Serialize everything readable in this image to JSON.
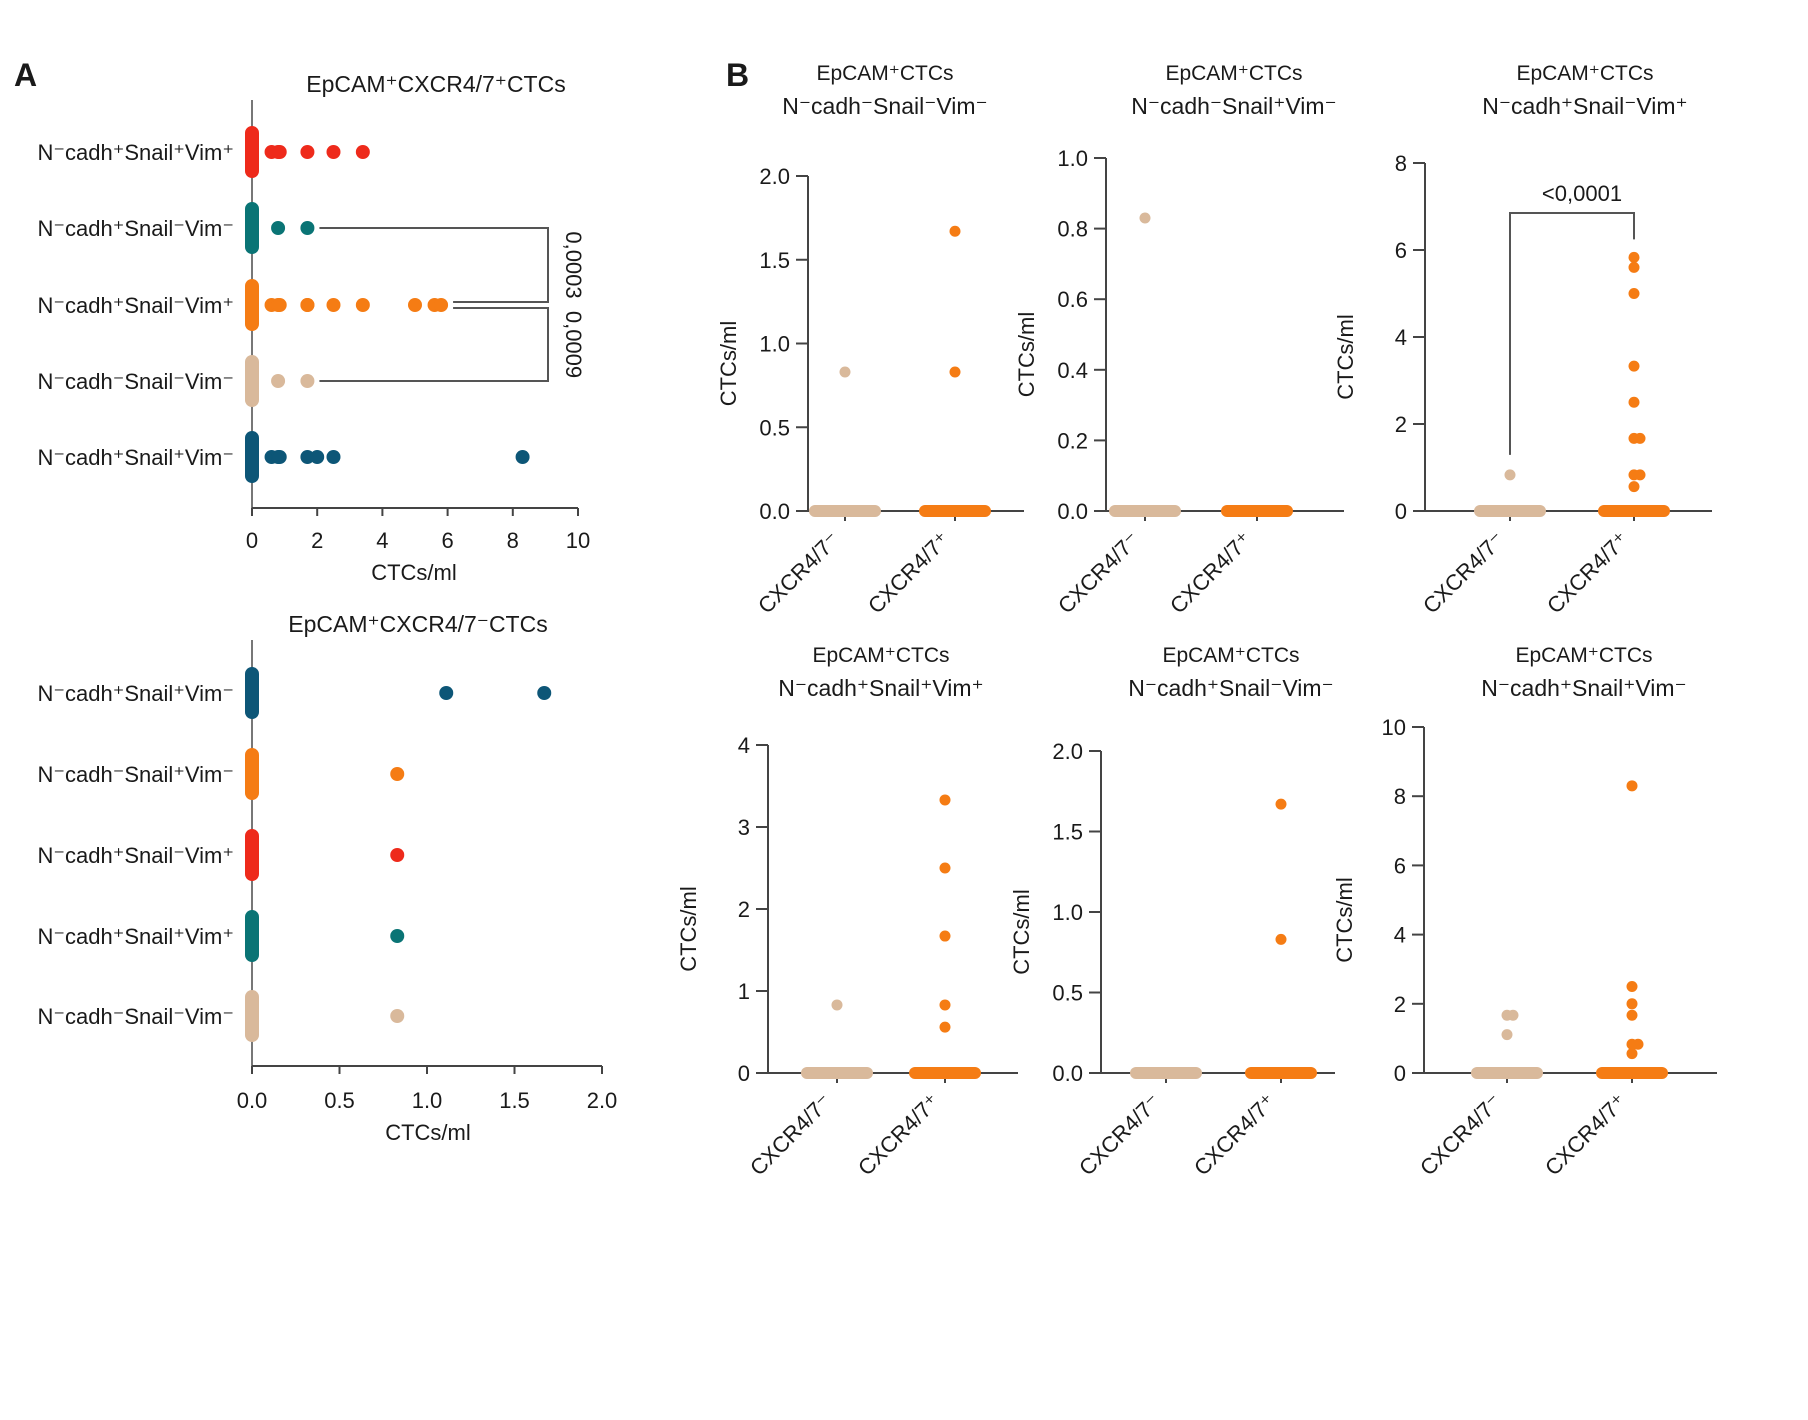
{
  "figure": {
    "panel_a_letter": "A",
    "panel_b_letter": "B"
  },
  "colors": {
    "red": "#ee2a1b",
    "teal": "#0a7475",
    "orange": "#f57c14",
    "beige": "#d9b99b",
    "navy": "#0d5677",
    "axis": "#444444"
  },
  "chart_data": [
    {
      "id": "A-top",
      "type": "scatter",
      "orientation": "horizontal-dot-plot",
      "title": "EpCAM⁺CXCR4/7⁺CTCs",
      "xlabel": "CTCs/ml",
      "ylabel": "",
      "xlim": [
        0,
        10
      ],
      "xticks": [
        "0",
        "2",
        "4",
        "6",
        "8",
        "10"
      ],
      "categories": [
        "N⁻cadh⁺Snail⁺Vim⁺",
        "N⁻cadh⁺Snail⁻Vim⁻",
        "N⁻cadh⁺Snail⁻Vim⁺",
        "N⁻cadh⁻Snail⁻Vim⁻",
        "N⁻cadh⁺Snail⁺Vim⁻"
      ],
      "series": [
        {
          "name": "N⁻cadh⁺Snail⁺Vim⁺",
          "color": "red",
          "values": [
            0,
            0.6,
            0.8,
            0.85,
            1.7,
            2.5,
            3.4
          ]
        },
        {
          "name": "N⁻cadh⁺Snail⁻Vim⁻",
          "color": "teal",
          "values": [
            0,
            0.8,
            1.7
          ]
        },
        {
          "name": "N⁻cadh⁺Snail⁻Vim⁺",
          "color": "orange",
          "values": [
            0,
            0.6,
            0.8,
            0.85,
            1.7,
            1.7,
            2.5,
            3.4,
            5.0,
            5.6,
            5.8
          ]
        },
        {
          "name": "N⁻cadh⁻Snail⁻Vim⁻",
          "color": "beige",
          "values": [
            0,
            0.8,
            1.7
          ]
        },
        {
          "name": "N⁻cadh⁺Snail⁺Vim⁻",
          "color": "navy",
          "values": [
            0,
            0.6,
            0.8,
            0.85,
            1.7,
            2.0,
            2.5,
            8.3
          ]
        }
      ],
      "comparisons": [
        {
          "from": 1,
          "to": 2,
          "p": "0,0003"
        },
        {
          "from": 2,
          "to": 3,
          "p": "0,0009"
        }
      ]
    },
    {
      "id": "A-bottom",
      "type": "scatter",
      "orientation": "horizontal-dot-plot",
      "title": "EpCAM⁺CXCR4/7⁻CTCs",
      "xlabel": "CTCs/ml",
      "ylabel": "",
      "xlim": [
        0,
        2
      ],
      "xticks": [
        "0.0",
        "0.5",
        "1.0",
        "1.5",
        "2.0"
      ],
      "categories": [
        "N⁻cadh⁺Snail⁺Vim⁻",
        "N⁻cadh⁻Snail⁺Vim⁻",
        "N⁻cadh⁺Snail⁻Vim⁺",
        "N⁻cadh⁺Snail⁺Vim⁺",
        "N⁻cadh⁻Snail⁻Vim⁻"
      ],
      "series": [
        {
          "name": "N⁻cadh⁺Snail⁺Vim⁻",
          "color": "navy",
          "values": [
            0,
            1.11,
            1.67
          ]
        },
        {
          "name": "N⁻cadh⁻Snail⁺Vim⁻",
          "color": "orange",
          "values": [
            0,
            0.83
          ]
        },
        {
          "name": "N⁻cadh⁺Snail⁻Vim⁺",
          "color": "red",
          "values": [
            0,
            0.83
          ]
        },
        {
          "name": "N⁻cadh⁺Snail⁺Vim⁺",
          "color": "teal",
          "values": [
            0,
            0.83
          ]
        },
        {
          "name": "N⁻cadh⁻Snail⁻Vim⁻",
          "color": "beige",
          "values": [
            0,
            0.83
          ]
        }
      ],
      "comparisons": []
    },
    {
      "id": "B1",
      "type": "scatter",
      "orientation": "vertical-dot-plot",
      "title": "EpCAM⁺CTCs",
      "subtitle": "N⁻cadh⁻Snail⁻Vim⁻",
      "ylabel": "CTCs/ml",
      "ylim": [
        0,
        2
      ],
      "yticks": [
        "0.0",
        "0.5",
        "1.0",
        "1.5",
        "2.0"
      ],
      "categories": [
        "CXCR4/7⁻",
        "CXCR4/7⁺"
      ],
      "series": [
        {
          "name": "CXCR4/7⁻",
          "color": "beige",
          "values": [
            0,
            0.83
          ]
        },
        {
          "name": "CXCR4/7⁺",
          "color": "orange",
          "values": [
            0,
            0.83,
            1.67
          ]
        }
      ],
      "comparisons": []
    },
    {
      "id": "B2",
      "type": "scatter",
      "orientation": "vertical-dot-plot",
      "title": "EpCAM⁺CTCs",
      "subtitle": "N⁻cadh⁻Snail⁺Vim⁻",
      "ylabel": "CTCs/ml",
      "ylim": [
        0,
        1
      ],
      "yticks": [
        "0.0",
        "0.2",
        "0.4",
        "0.6",
        "0.8",
        "1.0"
      ],
      "categories": [
        "CXCR4/7⁻",
        "CXCR4/7⁺"
      ],
      "series": [
        {
          "name": "CXCR4/7⁻",
          "color": "beige",
          "values": [
            0,
            0.83
          ]
        },
        {
          "name": "CXCR4/7⁺",
          "color": "orange",
          "values": [
            0
          ]
        }
      ],
      "comparisons": []
    },
    {
      "id": "B3",
      "type": "scatter",
      "orientation": "vertical-dot-plot",
      "title": "EpCAM⁺CTCs",
      "subtitle": "N⁻cadh⁺Snail⁻Vim⁺",
      "ylabel": "CTCs/ml",
      "ylim": [
        0,
        8
      ],
      "yticks": [
        "0",
        "2",
        "4",
        "6",
        "8"
      ],
      "categories": [
        "CXCR4/7⁻",
        "CXCR4/7⁺"
      ],
      "series": [
        {
          "name": "CXCR4/7⁻",
          "color": "beige",
          "values": [
            0,
            0.83
          ]
        },
        {
          "name": "CXCR4/7⁺",
          "color": "orange",
          "values": [
            0,
            0.56,
            0.83,
            0.83,
            1.67,
            1.67,
            2.5,
            3.33,
            5.0,
            5.6,
            5.83
          ]
        }
      ],
      "comparisons": [
        {
          "from": 0,
          "to": 1,
          "p": "<0,0001"
        }
      ]
    },
    {
      "id": "B4",
      "type": "scatter",
      "orientation": "vertical-dot-plot",
      "title": "EpCAM⁺CTCs",
      "subtitle": "N⁻cadh⁺Snail⁺Vim⁺",
      "ylabel": "CTCs/ml",
      "ylim": [
        0,
        4
      ],
      "yticks": [
        "0",
        "1",
        "2",
        "3",
        "4"
      ],
      "categories": [
        "CXCR4/7⁻",
        "CXCR4/7⁺"
      ],
      "series": [
        {
          "name": "CXCR4/7⁻",
          "color": "beige",
          "values": [
            0,
            0.83
          ]
        },
        {
          "name": "CXCR4/7⁺",
          "color": "orange",
          "values": [
            0,
            0.56,
            0.83,
            1.67,
            2.5,
            3.33
          ]
        }
      ],
      "comparisons": []
    },
    {
      "id": "B5",
      "type": "scatter",
      "orientation": "vertical-dot-plot",
      "title": "EpCAM⁺CTCs",
      "subtitle": "N⁻cadh⁺Snail⁻Vim⁻",
      "ylabel": "CTCs/ml",
      "ylim": [
        0,
        2
      ],
      "yticks": [
        "0.0",
        "0.5",
        "1.0",
        "1.5",
        "2.0"
      ],
      "categories": [
        "CXCR4/7⁻",
        "CXCR4/7⁺"
      ],
      "series": [
        {
          "name": "CXCR4/7⁻",
          "color": "beige",
          "values": [
            0
          ]
        },
        {
          "name": "CXCR4/7⁺",
          "color": "orange",
          "values": [
            0,
            0.83,
            1.67
          ]
        }
      ],
      "comparisons": []
    },
    {
      "id": "B6",
      "type": "scatter",
      "orientation": "vertical-dot-plot",
      "title": "EpCAM⁺CTCs",
      "subtitle": "N⁻cadh⁺Snail⁺Vim⁻",
      "ylabel": "CTCs/ml",
      "ylim": [
        0,
        10
      ],
      "yticks": [
        "0",
        "2",
        "4",
        "6",
        "8",
        "10"
      ],
      "categories": [
        "CXCR4/7⁻",
        "CXCR4/7⁺"
      ],
      "series": [
        {
          "name": "CXCR4/7⁻",
          "color": "beige",
          "values": [
            0,
            1.11,
            1.67,
            1.67
          ]
        },
        {
          "name": "CXCR4/7⁺",
          "color": "orange",
          "values": [
            0,
            0.56,
            0.83,
            0.83,
            1.67,
            2.0,
            2.5,
            8.3
          ]
        }
      ],
      "comparisons": []
    }
  ]
}
